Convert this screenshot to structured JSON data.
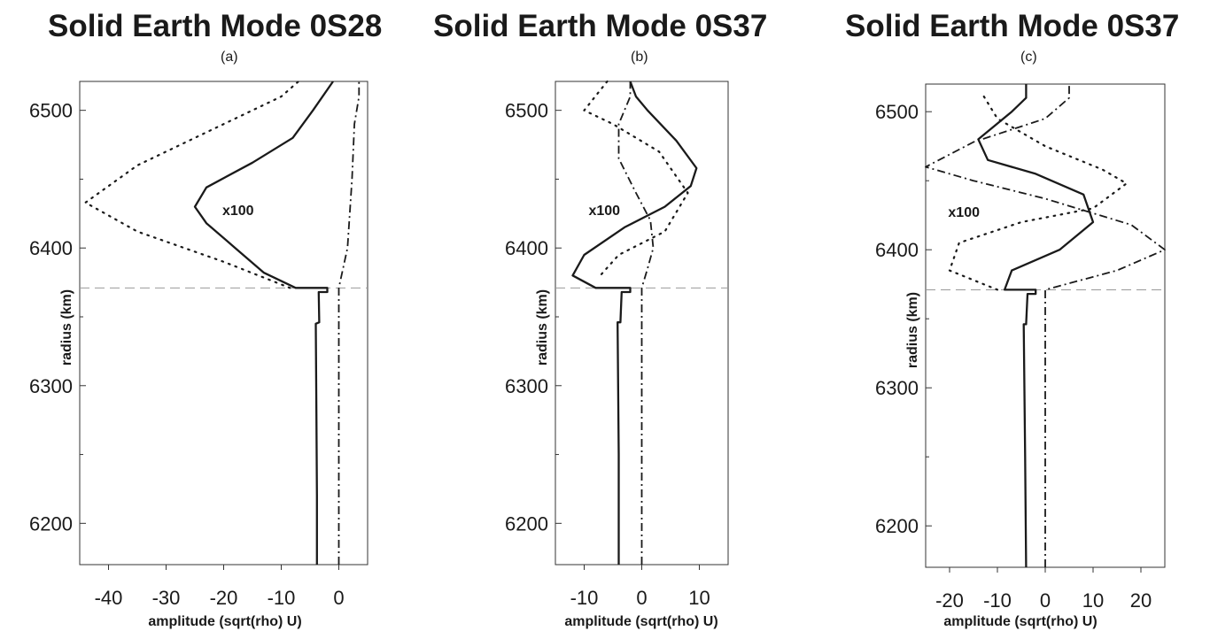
{
  "chart_data": [
    {
      "type": "line",
      "title": "Solid Earth Mode 0S28",
      "subtitle": "(a)",
      "xlabel": "amplitude (sqrt(rho) U)",
      "ylabel": "radius (km)",
      "xlim": [
        -45,
        5
      ],
      "ylim": [
        6170,
        6521
      ],
      "xticks": [
        -40,
        -30,
        -20,
        -10,
        0
      ],
      "yticks": [
        6200,
        6300,
        6400,
        6500
      ],
      "annotation": {
        "text": "x100",
        "x": -17.5,
        "y": 6424
      },
      "reference_line": {
        "y": 6371,
        "style": "dashed"
      },
      "grid": false,
      "series": [
        {
          "style": "solid",
          "points": [
            [
              -3.8,
              6170
            ],
            [
              -3.8,
              6220
            ],
            [
              -3.9,
              6280
            ],
            [
              -4,
              6345
            ],
            [
              -3.4,
              6346
            ],
            [
              -3.5,
              6368
            ],
            [
              -2,
              6368
            ],
            [
              -2,
              6371
            ],
            [
              -7.5,
              6371
            ],
            [
              -13,
              6382
            ],
            [
              -18,
              6400
            ],
            [
              -23,
              6418
            ],
            [
              -25,
              6430
            ],
            [
              -23,
              6444
            ],
            [
              -15,
              6462
            ],
            [
              -8,
              6480
            ],
            [
              -4.5,
              6500
            ],
            [
              -1,
              6521
            ]
          ]
        },
        {
          "style": "dashdot",
          "points": [
            [
              0,
              6170
            ],
            [
              0,
              6371
            ],
            [
              1.5,
              6400
            ],
            [
              2.3,
              6450
            ],
            [
              2.7,
              6490
            ],
            [
              3.5,
              6510
            ],
            [
              3.5,
              6521
            ]
          ]
        },
        {
          "style": "dotted",
          "points": [
            [
              -8.5,
              6371
            ],
            [
              -20,
              6390
            ],
            [
              -35,
              6412
            ],
            [
              -44,
              6433
            ],
            [
              -35,
              6460
            ],
            [
              -20,
              6490
            ],
            [
              -10,
              6510
            ],
            [
              -7,
              6521
            ]
          ]
        }
      ]
    },
    {
      "type": "line",
      "title": "Solid Earth Mode 0S37",
      "subtitle": "(b)",
      "xlabel": "amplitude (sqrt(rho) U)",
      "ylabel": "radius (km)",
      "xlim": [
        -15,
        15
      ],
      "ylim": [
        6170,
        6521
      ],
      "xticks": [
        -10,
        0,
        10
      ],
      "yticks": [
        6200,
        6300,
        6400,
        6500
      ],
      "annotation": {
        "text": "x100",
        "x": -6.5,
        "y": 6424
      },
      "reference_line": {
        "y": 6371,
        "style": "dashed"
      },
      "grid": false,
      "series": [
        {
          "style": "solid",
          "points": [
            [
              -4,
              6170
            ],
            [
              -4,
              6250
            ],
            [
              -4.2,
              6346
            ],
            [
              -3.7,
              6346
            ],
            [
              -3.5,
              6368
            ],
            [
              -2,
              6368
            ],
            [
              -2,
              6371
            ],
            [
              -8,
              6371
            ],
            [
              -12,
              6380
            ],
            [
              -10,
              6395
            ],
            [
              -3,
              6415
            ],
            [
              4,
              6430
            ],
            [
              8.5,
              6445
            ],
            [
              9.5,
              6458
            ],
            [
              6,
              6478
            ],
            [
              1,
              6500
            ],
            [
              -1,
              6510
            ],
            [
              -2,
              6521
            ]
          ]
        },
        {
          "style": "dashdot",
          "points": [
            [
              0,
              6170
            ],
            [
              0,
              6371
            ],
            [
              1,
              6385
            ],
            [
              2,
              6400
            ],
            [
              1.5,
              6420
            ],
            [
              -1,
              6440
            ],
            [
              -4,
              6465
            ],
            [
              -4,
              6490
            ],
            [
              -2,
              6510
            ],
            [
              -2,
              6521
            ]
          ]
        },
        {
          "style": "dotted",
          "points": [
            [
              -7,
              6381
            ],
            [
              -4,
              6395
            ],
            [
              4,
              6412
            ],
            [
              8,
              6440
            ],
            [
              3,
              6470
            ],
            [
              -5,
              6490
            ],
            [
              -10,
              6500
            ],
            [
              -6,
              6521
            ]
          ]
        }
      ]
    },
    {
      "type": "line",
      "title": "Solid Earth Mode 0S37",
      "subtitle": "(c)",
      "xlabel": "amplitude (sqrt(rho) U)",
      "ylabel": "radius (km)",
      "xlim": [
        -25,
        25
      ],
      "ylim": [
        6170,
        6520
      ],
      "xticks": [
        -20,
        -10,
        0,
        10,
        20
      ],
      "yticks": [
        6200,
        6300,
        6400,
        6500
      ],
      "annotation": {
        "text": "x100",
        "x": -17,
        "y": 6424
      },
      "reference_line": {
        "y": 6371,
        "style": "dashed"
      },
      "grid": false,
      "series": [
        {
          "style": "solid",
          "points": [
            [
              -4,
              6170
            ],
            [
              -4.2,
              6250
            ],
            [
              -4.5,
              6346
            ],
            [
              -4,
              6346
            ],
            [
              -3.7,
              6368
            ],
            [
              -2,
              6368
            ],
            [
              -2,
              6371
            ],
            [
              -8.5,
              6371
            ],
            [
              -7,
              6385
            ],
            [
              3,
              6400
            ],
            [
              10,
              6420
            ],
            [
              8,
              6440
            ],
            [
              -2,
              6455
            ],
            [
              -12,
              6465
            ],
            [
              -14,
              6480
            ],
            [
              -7,
              6500
            ],
            [
              -4,
              6510
            ],
            [
              -4,
              6520
            ]
          ]
        },
        {
          "style": "dashdot",
          "points": [
            [
              0,
              6170
            ],
            [
              0,
              6371
            ],
            [
              15,
              6385
            ],
            [
              25,
              6400
            ],
            [
              18,
              6418
            ],
            [
              0,
              6437
            ],
            [
              -15,
              6450
            ],
            [
              -25,
              6460
            ],
            [
              -15,
              6478
            ],
            [
              0,
              6495
            ],
            [
              5,
              6510
            ],
            [
              5,
              6520
            ]
          ]
        },
        {
          "style": "dotted",
          "points": [
            [
              -10,
              6371
            ],
            [
              -20,
              6385
            ],
            [
              -18,
              6405
            ],
            [
              -5,
              6420
            ],
            [
              10,
              6430
            ],
            [
              17,
              6448
            ],
            [
              12,
              6458
            ],
            [
              0,
              6475
            ],
            [
              -10,
              6495
            ],
            [
              -13,
              6512
            ]
          ]
        }
      ]
    }
  ]
}
